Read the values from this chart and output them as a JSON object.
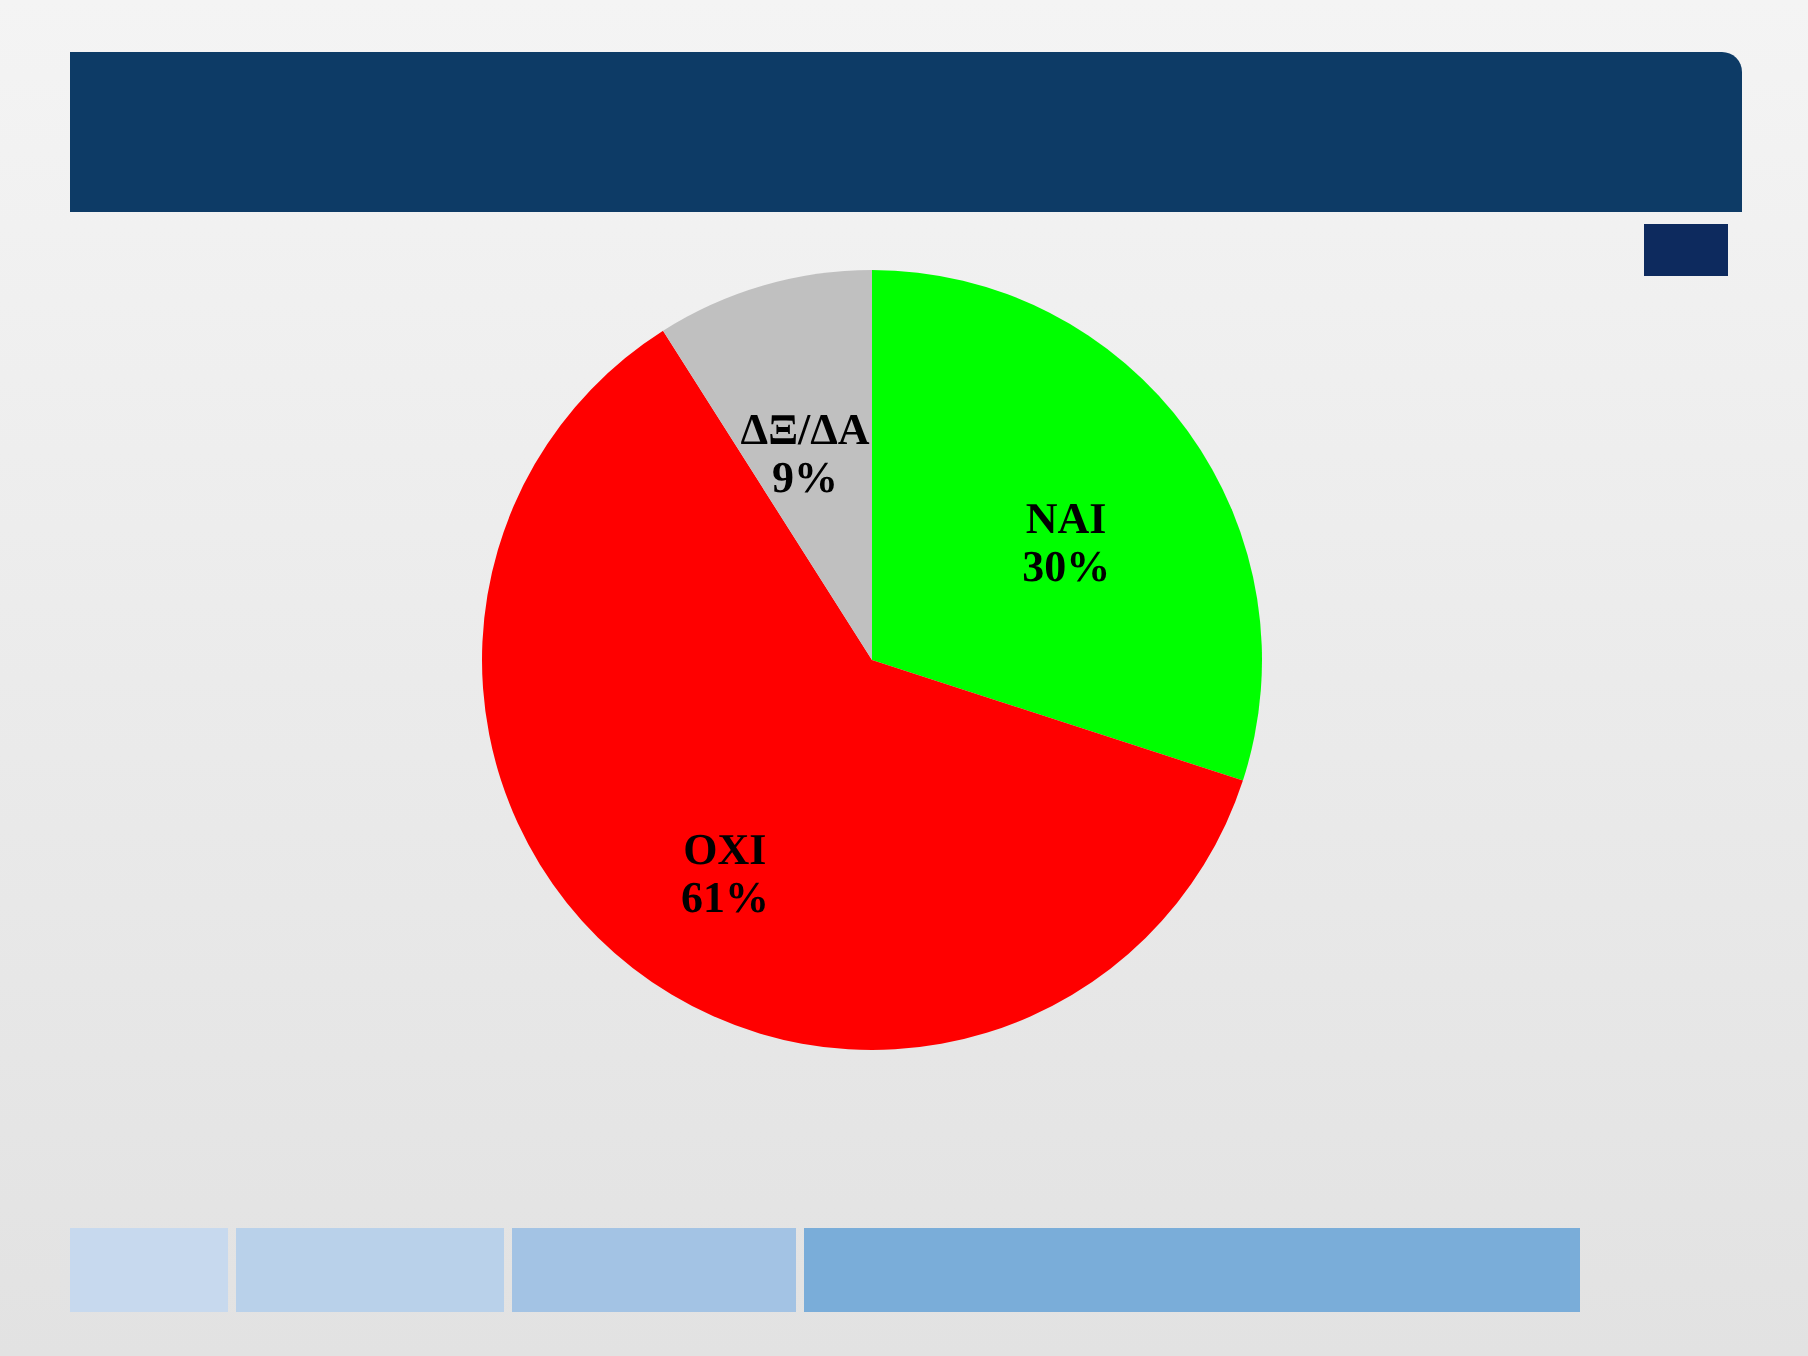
{
  "chart_data": {
    "type": "pie",
    "categories": [
      "ΝΑΙ",
      "ΟΧΙ",
      "ΔΞ/ΔΑ"
    ],
    "values": [
      30,
      61,
      9
    ],
    "value_labels": [
      "30%",
      "61%",
      "9%"
    ],
    "colors": [
      "#00ff00",
      "#ff0000",
      "#c0c0c0"
    ]
  }
}
